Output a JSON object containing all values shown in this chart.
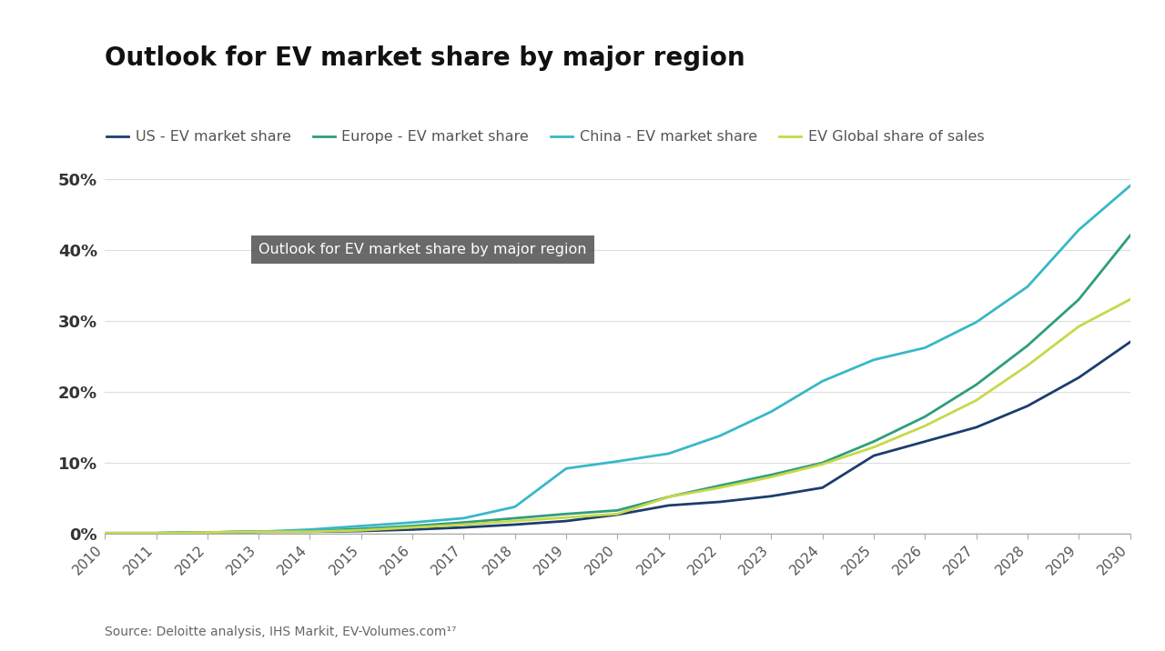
{
  "title": "Outlook for EV market share by major region",
  "source_text": "Source: Deloitte analysis, IHS Markit, EV-Volumes.com¹⁷",
  "annotation_text": "Outlook for EV market share by major region",
  "years": [
    2010,
    2011,
    2012,
    2013,
    2014,
    2015,
    2016,
    2017,
    2018,
    2019,
    2020,
    2021,
    2022,
    2023,
    2024,
    2025,
    2026,
    2027,
    2028,
    2029,
    2030
  ],
  "us": [
    0.001,
    0.001,
    0.002,
    0.003,
    0.003,
    0.004,
    0.006,
    0.009,
    0.013,
    0.018,
    0.027,
    0.04,
    0.045,
    0.053,
    0.065,
    0.11,
    0.13,
    0.15,
    0.18,
    0.22,
    0.27
  ],
  "europe": [
    0.001,
    0.001,
    0.002,
    0.003,
    0.004,
    0.007,
    0.011,
    0.016,
    0.022,
    0.028,
    0.033,
    0.052,
    0.068,
    0.083,
    0.1,
    0.13,
    0.165,
    0.21,
    0.265,
    0.33,
    0.42
  ],
  "china": [
    0.001,
    0.001,
    0.002,
    0.003,
    0.006,
    0.011,
    0.016,
    0.022,
    0.038,
    0.092,
    0.102,
    0.113,
    0.138,
    0.172,
    0.215,
    0.245,
    0.262,
    0.298,
    0.348,
    0.428,
    0.49
  ],
  "global": [
    0.001,
    0.001,
    0.002,
    0.003,
    0.003,
    0.005,
    0.009,
    0.013,
    0.018,
    0.023,
    0.028,
    0.052,
    0.065,
    0.08,
    0.098,
    0.122,
    0.152,
    0.188,
    0.237,
    0.292,
    0.33
  ],
  "us_color": "#1b3d6e",
  "europe_color": "#2e9e7c",
  "china_color": "#38b8c8",
  "global_color": "#c8d848",
  "background_color": "#ffffff",
  "ylim": [
    0,
    0.55
  ],
  "yticks": [
    0,
    0.1,
    0.2,
    0.3,
    0.4,
    0.5
  ],
  "ytick_labels": [
    "0%",
    "10%",
    "20%",
    "30%",
    "40%",
    "50%"
  ],
  "legend_labels": [
    "US - EV market share",
    "Europe - EV market share",
    "China - EV market share",
    "EV Global share of sales"
  ],
  "title_fontsize": 20,
  "annotation_box_color": "#555555",
  "annotation_text_color": "#ffffff",
  "line_width": 2.0
}
